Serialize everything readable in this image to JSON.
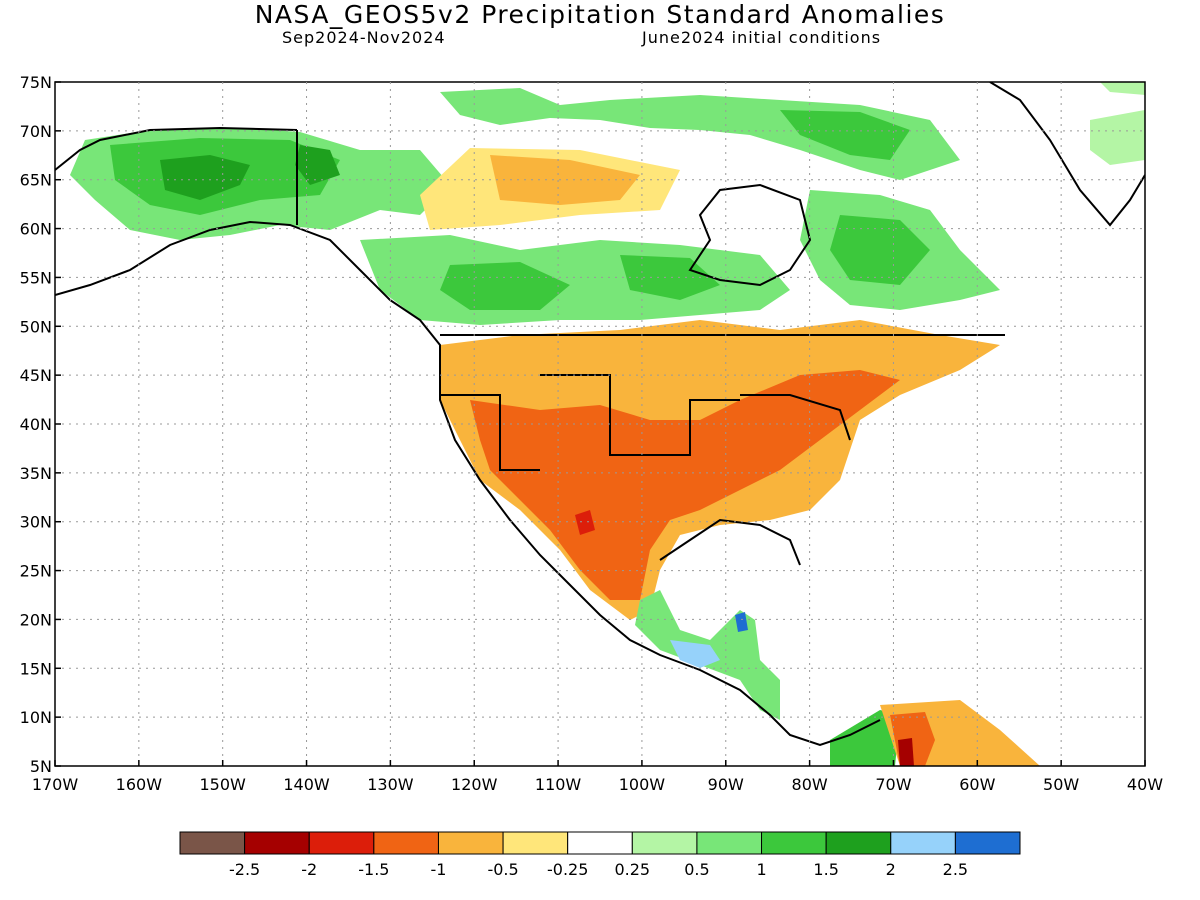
{
  "header": {
    "title": "NASA_GEOS5v2 Precipitation Standard Anomalies",
    "period": "Sep2024-Nov2024",
    "init": "June2024 initial conditions"
  },
  "map": {
    "lon_range": [
      -170,
      -40
    ],
    "lat_range": [
      5,
      75
    ],
    "lat_labels": [
      "75N",
      "70N",
      "65N",
      "60N",
      "55N",
      "50N",
      "45N",
      "40N",
      "35N",
      "30N",
      "25N",
      "20N",
      "15N",
      "10N",
      "5N"
    ],
    "lon_labels": [
      "170W",
      "160W",
      "150W",
      "140W",
      "130W",
      "120W",
      "110W",
      "100W",
      "90W",
      "80W",
      "70W",
      "60W",
      "50W",
      "40W"
    ],
    "gridlines": "dotted"
  },
  "colorbar": {
    "colors": [
      "#7a5548",
      "#a50000",
      "#dc1e0a",
      "#f06414",
      "#f9b43c",
      "#ffe67a",
      "#ffffff",
      "#b4f5a5",
      "#78e678",
      "#3cc83c",
      "#1ea01e",
      "#96d2fa",
      "#1e6ed2"
    ],
    "labels": [
      "-2.5",
      "-2",
      "-1.5",
      "-1",
      "-0.5",
      "-0.25",
      "0.25",
      "0.5",
      "1",
      "1.5",
      "2",
      "2.5"
    ]
  }
}
